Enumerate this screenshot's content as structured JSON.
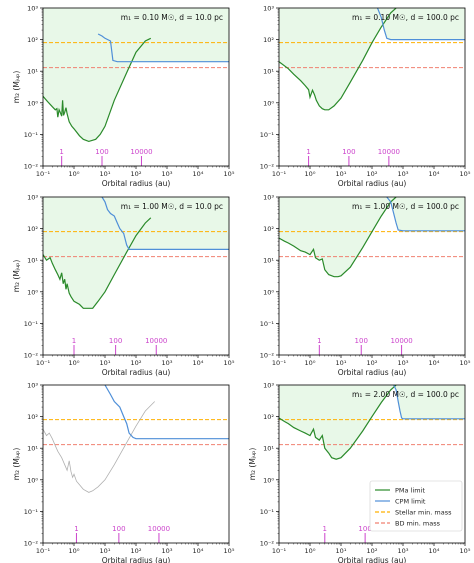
{
  "chart_data": {
    "type": "line",
    "xlabel": "Orbital radius (au)",
    "ylabel": "m₂ (Mⱼᵤₚ)",
    "xscale": "log",
    "yscale": "log",
    "xlim": [
      0.1,
      100000
    ],
    "ylim": [
      0.01,
      1000
    ],
    "x_ticks": [
      "10⁻¹",
      "10⁰",
      "10¹",
      "10²",
      "10³",
      "10⁴",
      "10⁵"
    ],
    "y_ticks": [
      "10⁻²",
      "10⁻¹",
      "10⁰",
      "10¹",
      "10²",
      "10³"
    ],
    "stellar_min_mass": 80,
    "bd_min_mass": 13,
    "colors": {
      "pma": "#2a8a2a",
      "pma_gray": "#b0b0b0",
      "cpm": "#4f8fd8",
      "stellar": "#ffb000",
      "bd": "#f08070",
      "fill": "#e8f8e8",
      "period": "#cc44cc"
    },
    "legend": {
      "position": "lower-right",
      "entries": [
        "PMa limit",
        "CPM limit",
        "Stellar min. mass",
        "BD min. mass"
      ]
    },
    "panels": [
      {
        "title": "m₁ = 0.10 M☉, d = 10.0 pc",
        "show_x_label": true,
        "show_y_label": true,
        "pma_gray": false,
        "pma": [
          [
            0.1,
            1.6
          ],
          [
            0.14,
            1.1
          ],
          [
            0.2,
            0.75
          ],
          [
            0.25,
            0.6
          ],
          [
            0.28,
            0.65
          ],
          [
            0.3,
            0.35
          ],
          [
            0.33,
            0.6
          ],
          [
            0.36,
            0.5
          ],
          [
            0.4,
            0.38
          ],
          [
            0.43,
            1.2
          ],
          [
            0.46,
            0.4
          ],
          [
            0.5,
            0.5
          ],
          [
            0.55,
            0.7
          ],
          [
            0.6,
            0.45
          ],
          [
            0.7,
            0.25
          ],
          [
            0.85,
            0.18
          ],
          [
            1.0,
            0.15
          ],
          [
            1.5,
            0.09
          ],
          [
            2.0,
            0.07
          ],
          [
            3.0,
            0.06
          ],
          [
            5.0,
            0.07
          ],
          [
            7.0,
            0.1
          ],
          [
            10,
            0.18
          ],
          [
            20,
            1.2
          ],
          [
            50,
            9
          ],
          [
            100,
            40
          ],
          [
            200,
            90
          ],
          [
            300,
            110
          ]
        ],
        "cpm": [
          [
            6,
            150
          ],
          [
            8,
            130
          ],
          [
            10,
            110
          ],
          [
            15,
            90
          ],
          [
            18,
            22
          ],
          [
            25,
            20
          ],
          [
            100,
            20
          ],
          [
            1000,
            20
          ],
          [
            100000,
            20
          ]
        ],
        "periods": [
          {
            "label": "1",
            "x": 0.4
          },
          {
            "label": "100",
            "x": 8
          },
          {
            "label": "10000",
            "x": 150
          }
        ]
      },
      {
        "title": "m₁ = 0.10 M☉, d = 100.0 pc",
        "show_x_label": true,
        "show_y_label": false,
        "pma_gray": false,
        "pma": [
          [
            0.1,
            20
          ],
          [
            0.2,
            12
          ],
          [
            0.3,
            8
          ],
          [
            0.5,
            5
          ],
          [
            0.7,
            3.5
          ],
          [
            0.9,
            2.6
          ],
          [
            1.0,
            1.5
          ],
          [
            1.2,
            2.5
          ],
          [
            1.4,
            1.8
          ],
          [
            1.6,
            1.2
          ],
          [
            2.0,
            0.8
          ],
          [
            2.5,
            0.65
          ],
          [
            3.0,
            0.6
          ],
          [
            4.0,
            0.6
          ],
          [
            6.0,
            0.8
          ],
          [
            10,
            1.4
          ],
          [
            20,
            4.5
          ],
          [
            50,
            22
          ],
          [
            100,
            80
          ],
          [
            200,
            250
          ],
          [
            400,
            700
          ],
          [
            600,
            1000
          ]
        ],
        "cpm": [
          [
            150,
            1000
          ],
          [
            200,
            500
          ],
          [
            250,
            200
          ],
          [
            300,
            110
          ],
          [
            400,
            100
          ],
          [
            1000,
            100
          ],
          [
            100000,
            100
          ]
        ],
        "periods": [
          {
            "label": "1",
            "x": 0.9
          },
          {
            "label": "100",
            "x": 18
          },
          {
            "label": "10000",
            "x": 350
          }
        ]
      },
      {
        "title": "m₁ = 1.00 M☉, d = 10.0 pc",
        "show_x_label": true,
        "show_y_label": true,
        "pma_gray": false,
        "pma": [
          [
            0.1,
            15
          ],
          [
            0.13,
            10
          ],
          [
            0.17,
            12
          ],
          [
            0.2,
            8
          ],
          [
            0.25,
            5
          ],
          [
            0.3,
            3.5
          ],
          [
            0.35,
            2.5
          ],
          [
            0.4,
            4
          ],
          [
            0.45,
            1.8
          ],
          [
            0.5,
            2.5
          ],
          [
            0.55,
            1.2
          ],
          [
            0.6,
            1.8
          ],
          [
            0.7,
            0.9
          ],
          [
            0.8,
            0.7
          ],
          [
            1.0,
            0.5
          ],
          [
            1.5,
            0.4
          ],
          [
            2.0,
            0.3
          ],
          [
            3.0,
            0.3
          ],
          [
            4.0,
            0.3
          ],
          [
            6.0,
            0.5
          ],
          [
            10,
            1.0
          ],
          [
            20,
            3.5
          ],
          [
            50,
            18
          ],
          [
            100,
            60
          ],
          [
            200,
            150
          ],
          [
            300,
            220
          ]
        ],
        "cpm": [
          [
            8,
            1000
          ],
          [
            10,
            700
          ],
          [
            12,
            400
          ],
          [
            15,
            300
          ],
          [
            20,
            250
          ],
          [
            25,
            150
          ],
          [
            30,
            100
          ],
          [
            40,
            70
          ],
          [
            50,
            30
          ],
          [
            60,
            22
          ],
          [
            100,
            22
          ],
          [
            1000,
            22
          ],
          [
            100000,
            22
          ]
        ],
        "periods": [
          {
            "label": "1",
            "x": 1
          },
          {
            "label": "100",
            "x": 22
          },
          {
            "label": "10000",
            "x": 450
          }
        ]
      },
      {
        "title": "m₁ = 1.00 M☉, d = 100.0 pc",
        "show_x_label": true,
        "show_y_label": false,
        "pma_gray": false,
        "pma": [
          [
            0.1,
            50
          ],
          [
            0.15,
            40
          ],
          [
            0.2,
            35
          ],
          [
            0.3,
            28
          ],
          [
            0.5,
            20
          ],
          [
            0.7,
            18
          ],
          [
            1.0,
            15
          ],
          [
            1.3,
            22
          ],
          [
            1.5,
            12
          ],
          [
            2.0,
            10
          ],
          [
            2.5,
            11
          ],
          [
            3.0,
            5
          ],
          [
            4.0,
            3.5
          ],
          [
            6.0,
            3
          ],
          [
            8.0,
            3
          ],
          [
            10,
            3.2
          ],
          [
            20,
            6
          ],
          [
            50,
            25
          ],
          [
            100,
            80
          ],
          [
            200,
            250
          ],
          [
            400,
            700
          ],
          [
            600,
            1000
          ]
        ],
        "cpm": [
          [
            300,
            1000
          ],
          [
            400,
            700
          ],
          [
            500,
            300
          ],
          [
            600,
            150
          ],
          [
            700,
            90
          ],
          [
            1000,
            85
          ],
          [
            10000,
            85
          ],
          [
            100000,
            85
          ]
        ],
        "periods": [
          {
            "label": "1",
            "x": 2
          },
          {
            "label": "100",
            "x": 45
          },
          {
            "label": "10000",
            "x": 900
          }
        ]
      },
      {
        "title": "",
        "show_x_label": true,
        "show_y_label": true,
        "pma_gray": true,
        "pma": [
          [
            0.1,
            40
          ],
          [
            0.13,
            25
          ],
          [
            0.16,
            30
          ],
          [
            0.2,
            20
          ],
          [
            0.25,
            12
          ],
          [
            0.3,
            8
          ],
          [
            0.4,
            5
          ],
          [
            0.5,
            3
          ],
          [
            0.6,
            2
          ],
          [
            0.7,
            4
          ],
          [
            0.8,
            1.8
          ],
          [
            0.9,
            1.2
          ],
          [
            1.0,
            1.5
          ],
          [
            1.2,
            0.9
          ],
          [
            1.5,
            0.7
          ],
          [
            2.0,
            0.5
          ],
          [
            3.0,
            0.4
          ],
          [
            4.0,
            0.45
          ],
          [
            6.0,
            0.6
          ],
          [
            10,
            1.0
          ],
          [
            20,
            3
          ],
          [
            50,
            15
          ],
          [
            100,
            50
          ],
          [
            200,
            150
          ],
          [
            400,
            300
          ]
        ],
        "cpm": [
          [
            10,
            1000
          ],
          [
            15,
            500
          ],
          [
            20,
            300
          ],
          [
            30,
            200
          ],
          [
            40,
            100
          ],
          [
            50,
            60
          ],
          [
            60,
            30
          ],
          [
            80,
            22
          ],
          [
            100,
            20
          ],
          [
            1000,
            20
          ],
          [
            100000,
            20
          ]
        ],
        "periods": [
          {
            "label": "1",
            "x": 1.2
          },
          {
            "label": "100",
            "x": 28
          },
          {
            "label": "10000",
            "x": 550
          }
        ]
      },
      {
        "title": "m₁ = 2.00 M☉, d = 100.0 pc",
        "show_x_label": true,
        "show_y_label": true,
        "pma_gray": false,
        "pma": [
          [
            0.1,
            90
          ],
          [
            0.15,
            70
          ],
          [
            0.2,
            60
          ],
          [
            0.3,
            45
          ],
          [
            0.5,
            35
          ],
          [
            0.7,
            30
          ],
          [
            1.0,
            25
          ],
          [
            1.3,
            40
          ],
          [
            1.5,
            22
          ],
          [
            2.0,
            18
          ],
          [
            2.5,
            25
          ],
          [
            3.0,
            10
          ],
          [
            4.0,
            7
          ],
          [
            5.0,
            5
          ],
          [
            7.0,
            4.5
          ],
          [
            10,
            5
          ],
          [
            20,
            10
          ],
          [
            50,
            35
          ],
          [
            100,
            100
          ],
          [
            200,
            280
          ],
          [
            400,
            700
          ],
          [
            600,
            1000
          ]
        ],
        "cpm": [
          [
            500,
            1000
          ],
          [
            600,
            700
          ],
          [
            700,
            300
          ],
          [
            800,
            150
          ],
          [
            900,
            90
          ],
          [
            1000,
            85
          ],
          [
            10000,
            85
          ],
          [
            100000,
            85
          ]
        ],
        "periods": [
          {
            "label": "1",
            "x": 3
          },
          {
            "label": "100",
            "x": 60
          }
        ]
      }
    ]
  }
}
